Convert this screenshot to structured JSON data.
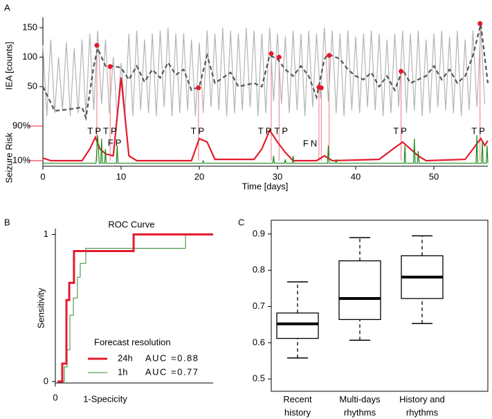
{
  "chart_data": [
    {
      "label": "A",
      "type": "timeseries",
      "xlabel": "Time [days]",
      "ylabel": "IEA [counts]",
      "y2label": "Seizure Risk",
      "xlim": [
        0,
        56.9
      ],
      "xticks": [
        0,
        10,
        20,
        30,
        40,
        50
      ],
      "ylim": [
        -85,
        167.6
      ],
      "yticks": [
        50,
        100,
        150
      ],
      "y2lim": [
        -2.8,
        341
      ],
      "y2ticks": [
        {
          "value": 10,
          "label": "10%"
        },
        {
          "value": 90,
          "label": "90%"
        }
      ],
      "series": [
        {
          "color": "#b3b3b3",
          "style": "solid",
          "x": [
            0,
            0.5,
            1,
            1.5,
            2,
            2.5,
            3,
            3.5,
            4,
            4.5,
            5,
            5.5,
            6,
            6.5,
            7,
            7.5,
            8,
            8.5,
            9,
            9.5,
            10,
            10.5,
            11,
            11.5,
            12,
            12.5,
            13,
            13.5,
            14,
            14.5,
            15,
            15.5,
            16,
            16.5,
            17,
            17.5,
            18,
            18.5,
            19,
            19.5,
            20,
            20.5,
            21,
            21.5,
            22,
            22.5,
            23,
            23.5,
            24,
            24.5,
            25,
            25.5,
            26,
            26.5,
            27,
            27.5,
            28,
            28.5,
            29,
            29.5,
            30,
            30.5,
            31,
            31.5,
            32,
            32.5,
            33,
            33.5,
            34,
            34.5,
            35,
            35.5,
            36,
            36.5,
            37,
            37.5,
            38,
            38.5,
            39,
            39.5,
            40,
            40.5,
            41,
            41.5,
            42,
            42.5,
            43,
            43.5,
            44,
            44.5,
            45,
            45.5,
            46,
            46.5,
            47,
            47.5,
            48,
            48.5,
            49,
            49.5,
            50,
            50.5,
            51,
            51.5,
            52,
            52.5,
            53,
            53.5,
            54,
            54.5,
            55,
            55.5,
            56,
            56.5
          ],
          "values": [
            120,
            0,
            130,
            5,
            100,
            10,
            125,
            0,
            115,
            5,
            130,
            0,
            140,
            10,
            145,
            20,
            130,
            5,
            100,
            0,
            90,
            5,
            140,
            0,
            145,
            10,
            130,
            5,
            140,
            0,
            145,
            15,
            150,
            0,
            140,
            5,
            140,
            10,
            130,
            0,
            125,
            5,
            145,
            15,
            140,
            10,
            150,
            0,
            145,
            5,
            140,
            10,
            150,
            15,
            145,
            0,
            140,
            5,
            150,
            25,
            140,
            20,
            135,
            5,
            145,
            10,
            140,
            0,
            145,
            15,
            140,
            30,
            150,
            25,
            145,
            5,
            140,
            0,
            145,
            10,
            135,
            5,
            140,
            15,
            145,
            10,
            140,
            0,
            130,
            5,
            140,
            15,
            145,
            5,
            140,
            10,
            145,
            0,
            130,
            5,
            140,
            15,
            145,
            10,
            135,
            5,
            145,
            0,
            130,
            10,
            145,
            15,
            150,
            20
          ]
        },
        {
          "color": "#555555",
          "style": "dashed",
          "x": [
            0,
            1.5,
            3,
            5,
            5.5,
            6.5,
            7,
            8,
            9,
            10,
            11,
            12,
            13,
            14,
            15,
            16,
            17,
            18,
            19,
            20,
            21,
            22,
            24,
            25,
            27,
            28,
            29,
            30,
            31,
            32,
            33,
            34,
            35,
            36,
            36.5,
            38,
            39,
            40,
            41,
            42,
            43,
            44,
            45,
            46,
            47,
            48,
            49,
            50,
            51,
            52,
            53,
            54,
            55,
            56,
            56.9
          ],
          "values": [
            50,
            9,
            11,
            15,
            -3,
            85,
            115,
            85,
            85,
            82,
            62,
            85,
            58,
            79,
            65,
            91,
            70,
            79,
            44,
            50,
            103,
            56,
            74,
            50,
            56,
            50,
            103,
            97,
            79,
            68,
            85,
            68,
            32,
            97,
            105,
            97,
            79,
            68,
            62,
            74,
            50,
            68,
            44,
            79,
            56,
            62,
            68,
            85,
            62,
            79,
            56,
            68,
            103,
            156,
            56
          ]
        },
        {
          "color": "#e41a2c",
          "style": "solid",
          "axis": "y2",
          "x": [
            0,
            1,
            5,
            6,
            6.7,
            7.3,
            8,
            9,
            10,
            11,
            12,
            19,
            20,
            21,
            22,
            27,
            28,
            29,
            30,
            31,
            32,
            35,
            36,
            37,
            43,
            45,
            46,
            47,
            48,
            49,
            54,
            55,
            56,
            56.5,
            56.9
          ],
          "values": [
            16,
            10,
            10,
            37,
            64,
            37,
            26,
            21,
            202,
            21,
            10,
            10,
            61,
            53,
            13,
            13,
            37,
            80,
            53,
            29,
            10,
            10,
            21,
            10,
            13,
            40,
            53,
            37,
            21,
            10,
            13,
            37,
            61,
            45,
            56
          ]
        },
        {
          "color": "#1a8a1a",
          "style": "solid",
          "axis": "y2",
          "x": [
            0,
            6.8,
            7,
            7.2,
            7.4,
            7.5,
            7.6,
            7.9,
            8,
            8.1,
            9.4,
            9.5,
            9.6,
            20.4,
            20.5,
            20.6,
            29.4,
            29.5,
            29.6,
            30.9,
            31,
            31.1,
            31.9,
            32,
            32.1,
            36.4,
            36.5,
            36.6,
            37.4,
            37.5,
            37.6,
            46.2,
            46.3,
            46.4,
            47.4,
            47.5,
            47.6,
            47.9,
            48,
            48.1,
            55.4,
            55.5,
            55.6,
            56.1,
            56.2,
            56.3,
            56.7,
            56.8,
            56.9
          ],
          "values": [
            4,
            4,
            69,
            4,
            4,
            61,
            4,
            4,
            37,
            4,
            4,
            45,
            4,
            4,
            10,
            4,
            4,
            21,
            4,
            4,
            13,
            4,
            4,
            21,
            4,
            4,
            45,
            4,
            4,
            13,
            4,
            4,
            45,
            4,
            4,
            61,
            4,
            4,
            32,
            4,
            4,
            69,
            4,
            4,
            53,
            4,
            4,
            45,
            4
          ]
        }
      ],
      "seizures": {
        "color": "#e41a2c",
        "x": [
          6.9,
          8.6,
          19.9,
          29.2,
          30.2,
          35.3,
          35.6,
          36.6,
          45.8,
          55.9
        ],
        "values": [
          120,
          84,
          48,
          106,
          100,
          49,
          48,
          103,
          76,
          157
        ]
      },
      "annotations": [
        {
          "text": "TP",
          "x": 6.7,
          "y": 77
        },
        {
          "text": "TP",
          "x": 8.7,
          "y": 77
        },
        {
          "text": "FP",
          "x": 9.3,
          "y": 50
        },
        {
          "text": "TP",
          "x": 19.9,
          "y": 77
        },
        {
          "text": "TP",
          "x": 28.5,
          "y": 77
        },
        {
          "text": "TP",
          "x": 30.6,
          "y": 77
        },
        {
          "text": "FN",
          "x": 34.3,
          "y": 48
        },
        {
          "text": "TP",
          "x": 45.8,
          "y": 77
        },
        {
          "text": "TP",
          "x": 55.8,
          "y": 77
        }
      ]
    },
    {
      "label": "B",
      "type": "step",
      "title": "ROC Curve",
      "xlabel": "1-Specicity",
      "ylabel": "Sensitivity",
      "xlim": [
        0,
        1
      ],
      "xticks": [
        0
      ],
      "ylim": [
        -0.01,
        1.04
      ],
      "yticks": [
        0,
        1
      ],
      "legend_title": "Forecast resolution",
      "series": [
        {
          "name": "24h",
          "auc": "AUC =0.88",
          "color": "#e41a2c",
          "width": 3,
          "x": [
            0.013,
            0.044,
            0.044,
            0.07,
            0.07,
            0.088,
            0.088,
            0.118,
            0.118,
            0.496,
            0.496,
            1
          ],
          "values": [
            0,
            0,
            0.122,
            0.122,
            0.554,
            0.554,
            0.671,
            0.671,
            0.887,
            0.887,
            1,
            1
          ]
        },
        {
          "name": "1h",
          "auc": "AUC =0.77",
          "color": "#2e8b2e",
          "width": 1,
          "x": [
            0.013,
            0.057,
            0.057,
            0.075,
            0.075,
            0.092,
            0.092,
            0.114,
            0.114,
            0.14,
            0.14,
            0.158,
            0.158,
            0.193,
            0.193,
            0.825,
            0.825,
            1
          ],
          "values": [
            0,
            0,
            0.099,
            0.099,
            0.216,
            0.216,
            0.451,
            0.451,
            0.568,
            0.568,
            0.709,
            0.709,
            0.803,
            0.803,
            0.906,
            0.906,
            1,
            1
          ]
        }
      ]
    },
    {
      "label": "C",
      "type": "box",
      "categories": [
        "Recent history",
        "Multi-days rhythms",
        "History and rhythms"
      ],
      "ylim": [
        0.466,
        0.938
      ],
      "yticks": [
        0.5,
        0.6,
        0.7,
        0.8,
        0.9
      ],
      "whisker_low": [
        0.558,
        0.607,
        0.653
      ],
      "q1": [
        0.612,
        0.664,
        0.722
      ],
      "median": [
        0.652,
        0.722,
        0.781
      ],
      "q3": [
        0.682,
        0.826,
        0.84
      ],
      "whisker_high": [
        0.768,
        0.89,
        0.895
      ]
    }
  ]
}
